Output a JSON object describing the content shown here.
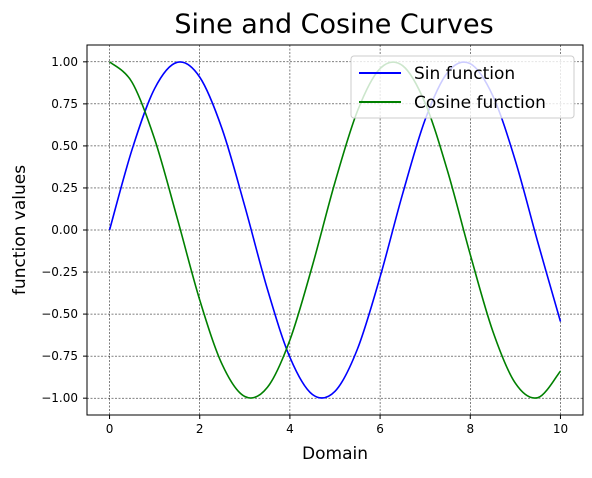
{
  "chart_data": {
    "type": "line",
    "title": "Sine and Cosine Curves",
    "xlabel": "Domain",
    "ylabel": "function values",
    "xlim": [
      -0.5,
      10.5
    ],
    "ylim": [
      -1.1,
      1.1
    ],
    "xticks": [
      0,
      2,
      4,
      6,
      8,
      10
    ],
    "xtick_labels": [
      "0",
      "2",
      "4",
      "6",
      "8",
      "10"
    ],
    "yticks": [
      -1.0,
      -0.75,
      -0.5,
      -0.25,
      0.0,
      0.25,
      0.5,
      0.75,
      1.0
    ],
    "ytick_labels": [
      "−1.00",
      "−0.75",
      "−0.50",
      "−0.25",
      "0.00",
      "0.25",
      "0.50",
      "0.75",
      "1.00"
    ],
    "grid": true,
    "legend_position": "upper right",
    "series": [
      {
        "name": "Sin function",
        "color": "#0000ff",
        "x": [
          0,
          0.5,
          1,
          1.5,
          2,
          2.5,
          3,
          3.5,
          4,
          4.5,
          5,
          5.5,
          6,
          6.5,
          7,
          7.5,
          8,
          8.5,
          9,
          9.5,
          10
        ],
        "y": [
          0.0,
          0.479,
          0.841,
          0.997,
          0.909,
          0.598,
          0.141,
          -0.351,
          -0.757,
          -0.978,
          -0.959,
          -0.706,
          -0.279,
          0.215,
          0.657,
          0.938,
          0.989,
          0.798,
          0.412,
          -0.075,
          -0.544
        ]
      },
      {
        "name": "Cosine function",
        "color": "#008000",
        "x": [
          0,
          0.5,
          1,
          1.5,
          2,
          2.5,
          3,
          3.5,
          4,
          4.5,
          5,
          5.5,
          6,
          6.5,
          7,
          7.5,
          8,
          8.5,
          9,
          9.5,
          10
        ],
        "y": [
          1.0,
          0.878,
          0.54,
          0.071,
          -0.416,
          -0.801,
          -0.99,
          -0.936,
          -0.654,
          -0.211,
          0.284,
          0.709,
          0.96,
          0.977,
          0.754,
          0.347,
          -0.146,
          -0.602,
          -0.911,
          -0.997,
          -0.839
        ]
      }
    ]
  }
}
